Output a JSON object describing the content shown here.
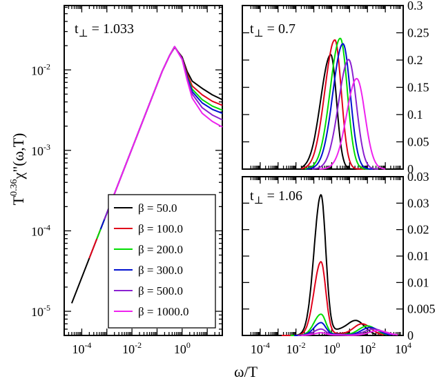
{
  "chart_data": [
    {
      "type": "line",
      "id": "left",
      "scale": "loglog",
      "label_main": "t",
      "label_sub": "⊥",
      "label_value": " = 1.033",
      "ylabel": {
        "base": "T",
        "exp": "0.36",
        "rest": "χ\"(ω,T)"
      },
      "xlim_log": [
        -4.7,
        1.6
      ],
      "ylim_log": [
        -5.3,
        -1.2
      ],
      "xticks": [
        {
          "pow": -4,
          "text": "10",
          "exp": "-4"
        },
        {
          "pow": -2,
          "text": "10",
          "exp": "-2"
        },
        {
          "pow": 0,
          "text": "10",
          "exp": "0"
        }
      ],
      "yticks": [
        {
          "pow": -5,
          "text": "10",
          "exp": "-5"
        },
        {
          "pow": -4,
          "text": "10",
          "exp": "-4"
        },
        {
          "pow": -3,
          "text": "10",
          "exp": "-3"
        },
        {
          "pow": -2,
          "text": "10",
          "exp": "-2"
        }
      ],
      "series": [
        {
          "name": "β = 50.0",
          "color": "#000000",
          "x_log": [
            -4.4,
            -3.0,
            -1.5,
            -0.8,
            -0.5,
            -0.3,
            0.0,
            0.2,
            0.4,
            0.8,
            1.2,
            1.6
          ],
          "y_log": [
            -4.9,
            -3.78,
            -2.58,
            -2.02,
            -1.82,
            -1.72,
            -1.84,
            -2.02,
            -2.14,
            -2.23,
            -2.31,
            -2.37
          ]
        },
        {
          "name": "β = 100.0",
          "color": "#e0001a",
          "x_log": [
            -3.7,
            -3.0,
            -1.5,
            -0.8,
            -0.5,
            -0.3,
            0.0,
            0.2,
            0.4,
            0.8,
            1.2,
            1.6
          ],
          "y_log": [
            -4.34,
            -3.78,
            -2.58,
            -2.02,
            -1.82,
            -1.71,
            -1.85,
            -2.05,
            -2.2,
            -2.31,
            -2.39,
            -2.44
          ]
        },
        {
          "name": "β = 200.0",
          "color": "#00dd00",
          "x_log": [
            -3.4,
            -3.0,
            -1.5,
            -0.8,
            -0.5,
            -0.3,
            0.0,
            0.2,
            0.4,
            0.8,
            1.2,
            1.6
          ],
          "y_log": [
            -4.1,
            -3.78,
            -2.58,
            -2.02,
            -1.82,
            -1.71,
            -1.86,
            -2.08,
            -2.24,
            -2.37,
            -2.45,
            -2.5
          ]
        },
        {
          "name": "β = 300.0",
          "color": "#0010d0",
          "x_log": [
            -3.25,
            -3.0,
            -1.5,
            -0.8,
            -0.5,
            -0.3,
            0.0,
            0.2,
            0.4,
            0.8,
            1.2,
            1.6
          ],
          "y_log": [
            -3.98,
            -3.78,
            -2.58,
            -2.02,
            -1.82,
            -1.71,
            -1.86,
            -2.09,
            -2.27,
            -2.41,
            -2.49,
            -2.54
          ]
        },
        {
          "name": "β = 500.0",
          "color": "#8a20d0",
          "x_log": [
            -3.1,
            -3.0,
            -1.5,
            -0.8,
            -0.5,
            -0.3,
            0.0,
            0.2,
            0.4,
            0.8,
            1.2,
            1.6
          ],
          "y_log": [
            -3.86,
            -3.78,
            -2.58,
            -2.02,
            -1.82,
            -1.71,
            -1.87,
            -2.11,
            -2.3,
            -2.47,
            -2.56,
            -2.62
          ]
        },
        {
          "name": "β = 1000.0",
          "color": "#ee22ee",
          "x_log": [
            -2.8,
            -1.5,
            -0.8,
            -0.5,
            -0.3,
            0.0,
            0.2,
            0.4,
            0.8,
            1.2,
            1.6
          ],
          "y_log": [
            -3.62,
            -2.58,
            -2.02,
            -1.82,
            -1.71,
            -1.87,
            -2.13,
            -2.35,
            -2.54,
            -2.64,
            -2.71
          ]
        }
      ]
    },
    {
      "type": "line",
      "id": "top-right",
      "scale": "semilogx",
      "label_main": "t",
      "label_sub": "⊥",
      "label_value": " = 0.7",
      "xlim_log": [
        -5,
        4
      ],
      "ylim": [
        0,
        0.3
      ],
      "yticks": [
        {
          "v": 0.3,
          "text": "0.3"
        },
        {
          "v": 0.25,
          "text": "0.25"
        },
        {
          "v": 0.2,
          "text": "0.2"
        },
        {
          "v": 0.15,
          "text": "0.15"
        },
        {
          "v": 0.1,
          "text": "0.1"
        },
        {
          "v": 0.05,
          "text": "0.05"
        },
        {
          "v": 0,
          "text": "0"
        }
      ],
      "series": [
        {
          "name": "β = 50.0",
          "color": "#000000",
          "peak_log": -0.05,
          "peak": 0.21,
          "w_left": 0.8,
          "w_right": 0.45,
          "x_from": -1.7,
          "x_to": 1.5
        },
        {
          "name": "β = 100.0",
          "color": "#e0001a",
          "peak_log": 0.18,
          "peak": 0.237,
          "w_left": 0.8,
          "w_right": 0.5,
          "x_from": -1.7,
          "x_to": 1.8
        },
        {
          "name": "β = 200.0",
          "color": "#00dd00",
          "peak_log": 0.48,
          "peak": 0.24,
          "w_left": 0.8,
          "w_right": 0.55,
          "x_from": -1.5,
          "x_to": 2.1
        },
        {
          "name": "β = 300.0",
          "color": "#0010d0",
          "peak_log": 0.63,
          "peak": 0.23,
          "w_left": 0.8,
          "w_right": 0.58,
          "x_from": -1.4,
          "x_to": 2.3
        },
        {
          "name": "β = 500.0",
          "color": "#8a20d0",
          "peak_log": 0.95,
          "peak": 0.201,
          "w_left": 0.8,
          "w_right": 0.6,
          "x_from": -1.1,
          "x_to": 2.6
        },
        {
          "name": "β = 1000.0",
          "color": "#ee22ee",
          "peak_log": 1.4,
          "peak": 0.166,
          "w_left": 0.8,
          "w_right": 0.65,
          "x_from": -0.7,
          "x_to": 3.0
        }
      ]
    },
    {
      "type": "line",
      "id": "bottom-right",
      "scale": "semilogx",
      "label_main": "t",
      "label_sub": "⊥",
      "label_value": " = 1.06",
      "xlim_log": [
        -5,
        4
      ],
      "ylim": [
        0,
        0.03
      ],
      "xticks": [
        {
          "pow": -4,
          "text": "10",
          "exp": "-4"
        },
        {
          "pow": -2,
          "text": "10",
          "exp": "-2"
        },
        {
          "pow": 0,
          "text": "10",
          "exp": "0"
        },
        {
          "pow": 2,
          "text": "10",
          "exp": "2"
        },
        {
          "pow": 4,
          "text": "10",
          "exp": "4"
        }
      ],
      "yticks": [
        {
          "v": 0.03,
          "text": "0.03"
        },
        {
          "v": 0.025,
          "text": "0.03"
        },
        {
          "v": 0.02,
          "text": "0.02"
        },
        {
          "v": 0.015,
          "text": "0.01"
        },
        {
          "v": 0.01,
          "text": "0.01"
        },
        {
          "v": 0.005,
          "text": "0.005"
        },
        {
          "v": 0,
          "text": "0"
        }
      ],
      "series": [
        {
          "name": "β = 50.0",
          "color": "#000000",
          "peak": 0.0265,
          "sec": 0.0028,
          "sec_log": 1.35,
          "sec_w": 0.7,
          "dip": 0.0008,
          "x_from": -3.1,
          "x_to": 2.5
        },
        {
          "name": "β = 100.0",
          "color": "#e0001a",
          "peak": 0.0139,
          "sec": 0.0022,
          "sec_log": 1.7,
          "sec_w": 0.7,
          "dip": 0.0003,
          "x_from": -2.8,
          "x_to": 2.9
        },
        {
          "name": "β = 200.0",
          "color": "#00dd00",
          "peak": 0.004,
          "sec": 0.0018,
          "sec_log": 2.0,
          "sec_w": 0.7,
          "dip": 0.0002,
          "x_from": -2.3,
          "x_to": 3.1
        },
        {
          "name": "β = 300.0",
          "color": "#0010d0",
          "peak": 0.0024,
          "sec": 0.0015,
          "sec_log": 2.15,
          "sec_w": 0.7,
          "dip": 0.0002,
          "x_from": -2.1,
          "x_to": 3.3
        },
        {
          "name": "β = 500.0",
          "color": "#8a20d0",
          "peak": 0.0012,
          "sec": 0.0012,
          "sec_log": 2.35,
          "sec_w": 0.75,
          "dip": 0.0001,
          "x_from": -1.9,
          "x_to": 3.5
        },
        {
          "name": "β = 1000.0",
          "color": "#ee22ee",
          "peak": 0.0005,
          "sec": 0.0009,
          "sec_log": 2.6,
          "sec_w": 0.75,
          "dip": 0.0001,
          "x_from": -1.7,
          "x_to": 3.7
        }
      ]
    }
  ],
  "legend": [
    {
      "label": "β = 50.0",
      "color": "#000000"
    },
    {
      "label": "β = 100.0",
      "color": "#e0001a"
    },
    {
      "label": "β = 200.0",
      "color": "#00dd00"
    },
    {
      "label": "β = 300.0",
      "color": "#0010d0"
    },
    {
      "label": "β = 500.0",
      "color": "#8a20d0"
    },
    {
      "label": "β = 1000.0",
      "color": "#ee22ee"
    }
  ],
  "xlabel": "ω/T"
}
